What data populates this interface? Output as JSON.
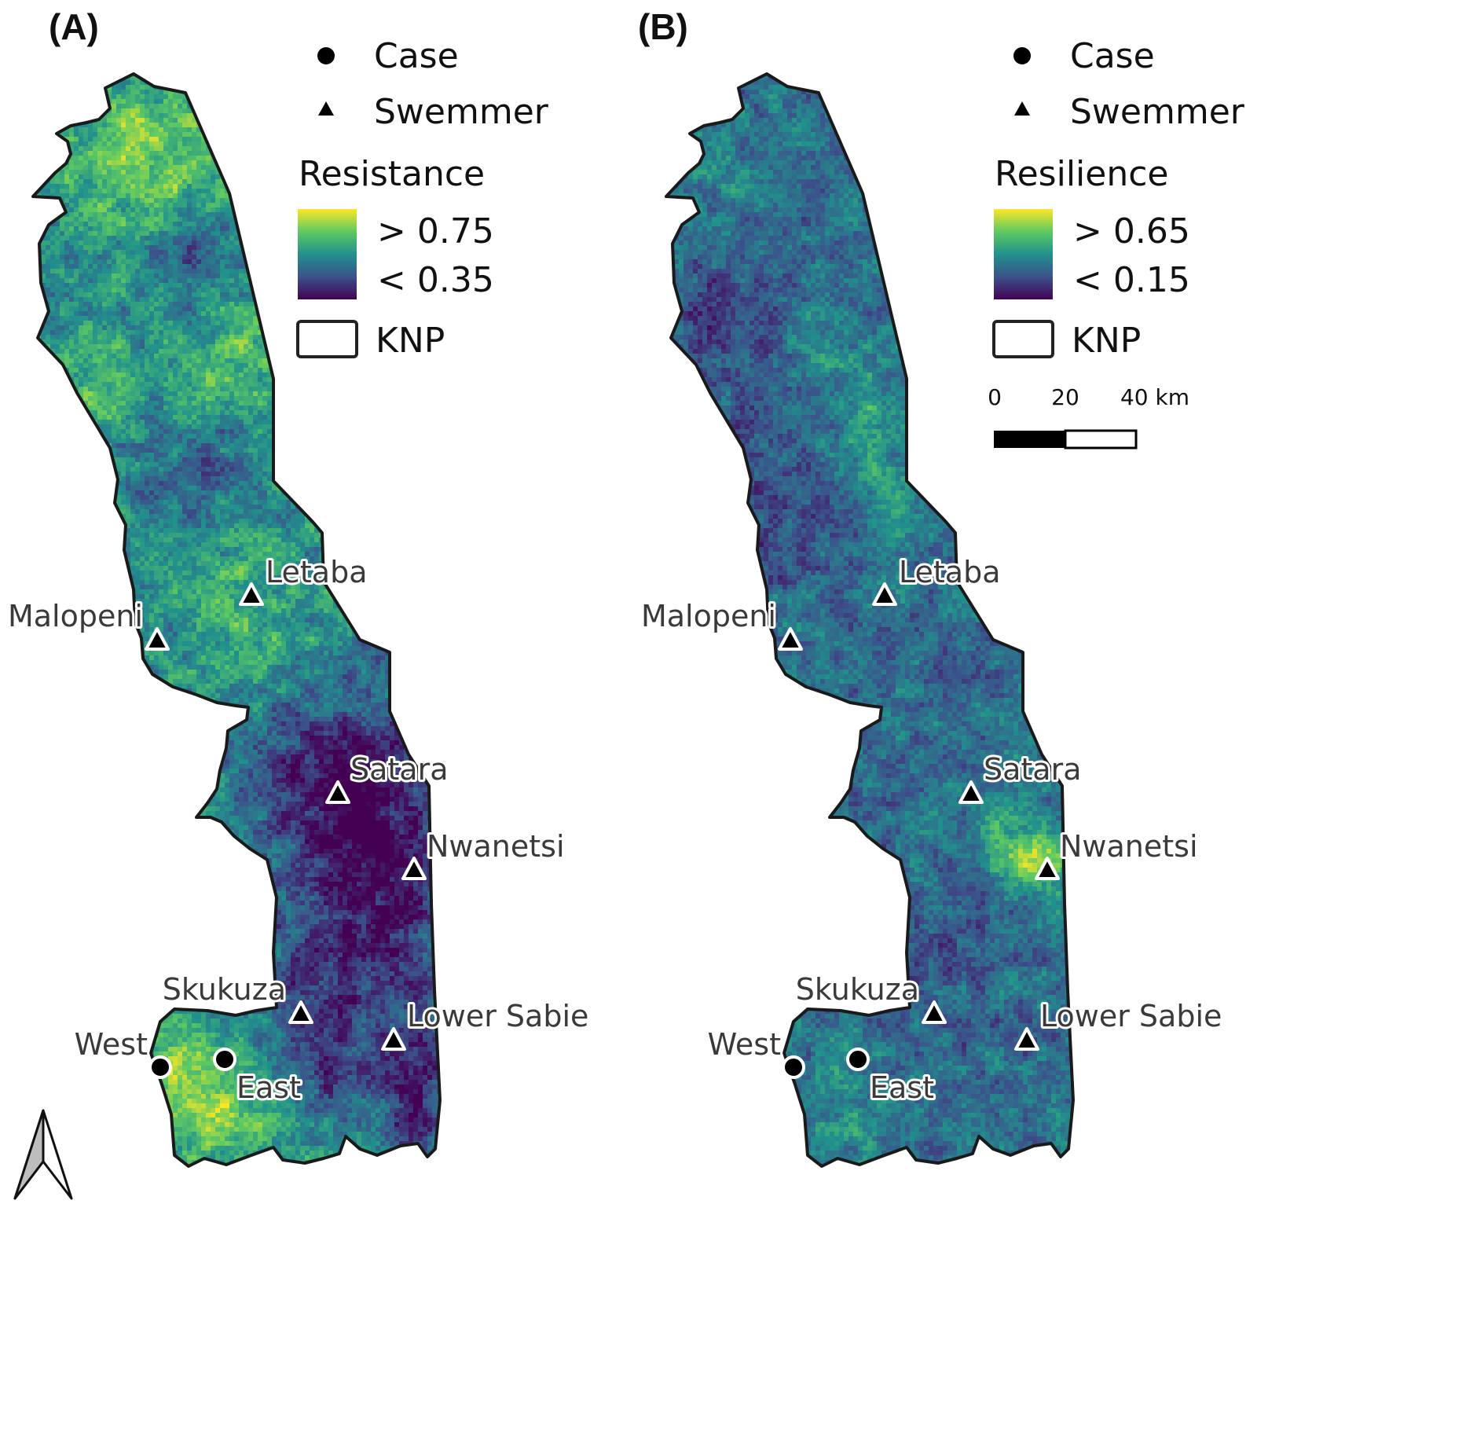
{
  "panels": [
    {
      "letter": "(A)",
      "legend": {
        "case_label": "Case",
        "swemmer_label": "Swemmer",
        "variable_title": "Resistance",
        "high_label": "> 0.75",
        "low_label": "< 0.35",
        "boundary_label": "KNP"
      },
      "surface": "resistance",
      "show_scalebar": false,
      "show_north_arrow": true
    },
    {
      "letter": "(B)",
      "legend": {
        "case_label": "Case",
        "swemmer_label": "Swemmer",
        "variable_title": "Resilience",
        "high_label": "> 0.65",
        "low_label": "< 0.15",
        "boundary_label": "KNP"
      },
      "surface": "resilience",
      "show_scalebar": true,
      "show_north_arrow": false
    }
  ],
  "scalebar": {
    "labels": [
      "0",
      "20",
      "40 km"
    ]
  },
  "colormap": {
    "name": "viridis",
    "stops": [
      "#440154",
      "#3b528b",
      "#21918c",
      "#5ec962",
      "#fde725"
    ]
  },
  "sites": [
    {
      "name": "Letaba",
      "type": "swemmer"
    },
    {
      "name": "Malopeni",
      "type": "swemmer"
    },
    {
      "name": "Satara",
      "type": "swemmer"
    },
    {
      "name": "Nwanetsi",
      "type": "swemmer"
    },
    {
      "name": "Skukuza",
      "type": "swemmer"
    },
    {
      "name": "Lower Sabie",
      "type": "swemmer"
    },
    {
      "name": "West",
      "type": "case"
    },
    {
      "name": "East",
      "type": "case"
    }
  ]
}
